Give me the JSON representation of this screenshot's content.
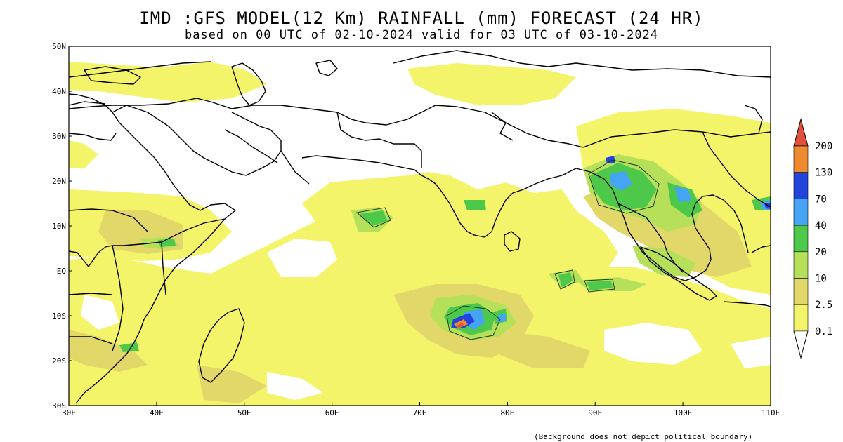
{
  "title": "IMD :GFS MODEL(12 Km) RAINFALL (mm) FORECAST (24 HR)",
  "subtitle": "based on 00 UTC of 02-10-2024 valid for 03 UTC of 03-10-2024",
  "footnote": "(Background does not depict political boundary)",
  "map": {
    "lon_range": [
      30,
      110
    ],
    "lat_range": [
      -30,
      50
    ],
    "lon_ticks": [
      {
        "value": 30,
        "label": "30E"
      },
      {
        "value": 40,
        "label": "40E"
      },
      {
        "value": 50,
        "label": "50E"
      },
      {
        "value": 60,
        "label": "60E"
      },
      {
        "value": 70,
        "label": "70E"
      },
      {
        "value": 80,
        "label": "80E"
      },
      {
        "value": 90,
        "label": "90E"
      },
      {
        "value": 100,
        "label": "100E"
      },
      {
        "value": 110,
        "label": "110E"
      }
    ],
    "lat_ticks": [
      {
        "value": 50,
        "label": "50N"
      },
      {
        "value": 40,
        "label": "40N"
      },
      {
        "value": 30,
        "label": "30N"
      },
      {
        "value": 20,
        "label": "20N"
      },
      {
        "value": 10,
        "label": "10N"
      },
      {
        "value": 0,
        "label": "EQ"
      },
      {
        "value": -10,
        "label": "10S"
      },
      {
        "value": -20,
        "label": "20S"
      },
      {
        "value": -30,
        "label": "30S"
      }
    ]
  },
  "legend": {
    "labels": [
      "200",
      "130",
      "70",
      "40",
      "20",
      "10",
      "2.5",
      "0.1"
    ],
    "colors": {
      "c0": "#f4f46a",
      "c1": "#e2d86a",
      "c2": "#b6e05a",
      "c3": "#4ec84a",
      "c4": "#46a4f4",
      "c5": "#2244dc",
      "c6": "#ee8a30",
      "c7": "#e24f3c"
    }
  }
}
